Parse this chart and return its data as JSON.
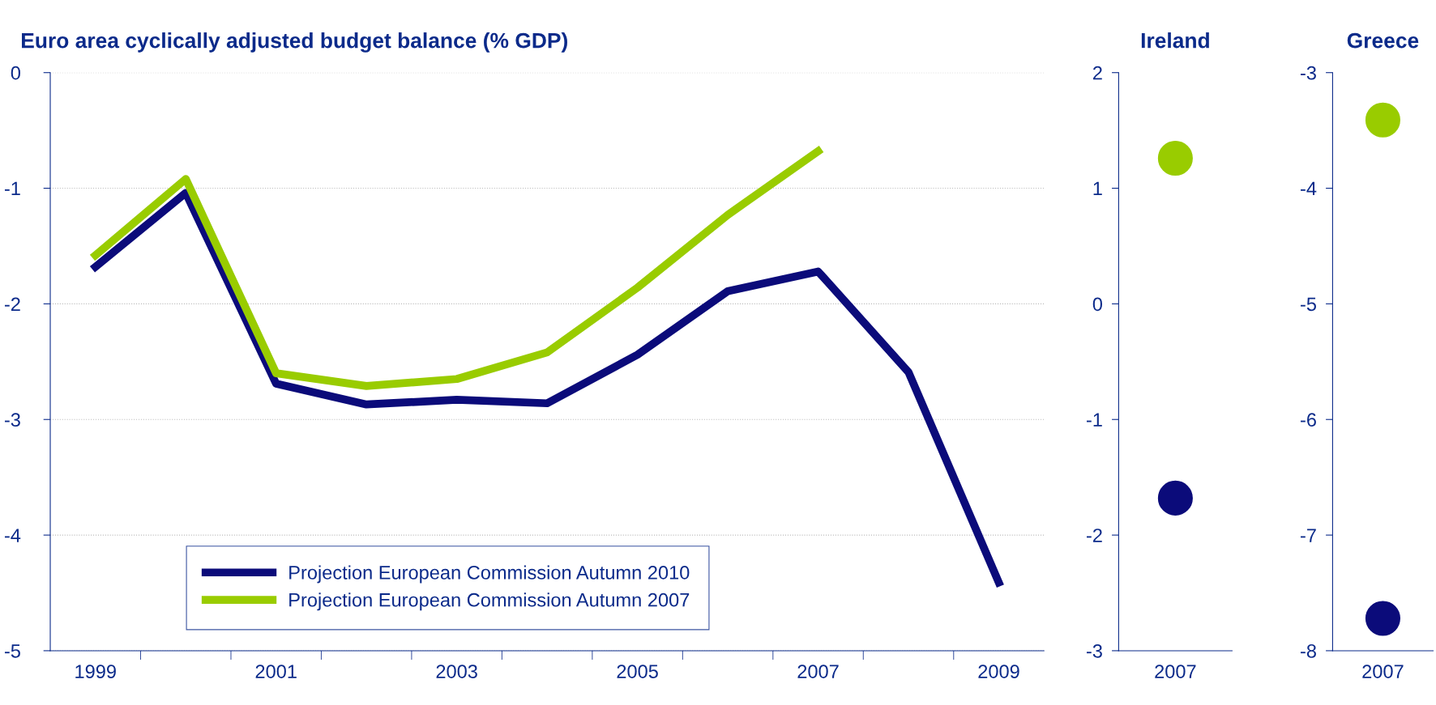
{
  "chart_data": [
    {
      "type": "line",
      "title": "Euro area cyclically adjusted budget balance (% GDP)",
      "categories": [
        "1999",
        null,
        "2001",
        null,
        "2003",
        null,
        "2005",
        null,
        "2007",
        null,
        "2009"
      ],
      "ylim": [
        -5,
        0
      ],
      "yticks": [
        -5,
        -4,
        -3,
        -2,
        -1,
        0
      ],
      "grid": "y",
      "legend": "bottom",
      "marker": "none",
      "line_style": "solid",
      "series": [
        {
          "name": "Projection European Commission Autumn 2010",
          "color": "#0b0b7a",
          "values": [
            -1.68,
            -1.04,
            -2.69,
            -2.87,
            -2.83,
            -2.86,
            -2.44,
            -1.89,
            -1.72,
            -2.59,
            -4.41
          ]
        },
        {
          "name": "Projection European Commission Autumn 2007",
          "color": "#99cc00",
          "values": [
            -1.58,
            -0.92,
            -2.6,
            -2.71,
            -2.65,
            -2.42,
            -1.86,
            -1.23,
            -0.68,
            null,
            null
          ]
        }
      ]
    },
    {
      "type": "scatter",
      "title": "Ireland",
      "categories": [
        "2007"
      ],
      "ylim": [
        -3,
        2
      ],
      "yticks": [
        -3,
        -2,
        -1,
        0,
        1,
        2
      ],
      "grid": false,
      "legend": false,
      "marker": "circle",
      "series": [
        {
          "color": "#0b0b7a",
          "values": [
            -1.68
          ]
        },
        {
          "color": "#99cc00",
          "values": [
            1.26
          ]
        }
      ]
    },
    {
      "type": "scatter",
      "title": "Greece",
      "categories": [
        "2007"
      ],
      "ylim": [
        -8,
        -3
      ],
      "yticks": [
        -8,
        -7,
        -6,
        -5,
        -4,
        -3
      ],
      "grid": false,
      "legend": false,
      "marker": "circle",
      "series": [
        {
          "color": "#0b0b7a",
          "values": [
            -7.72
          ]
        },
        {
          "color": "#99cc00",
          "values": [
            -3.41
          ]
        }
      ]
    }
  ]
}
